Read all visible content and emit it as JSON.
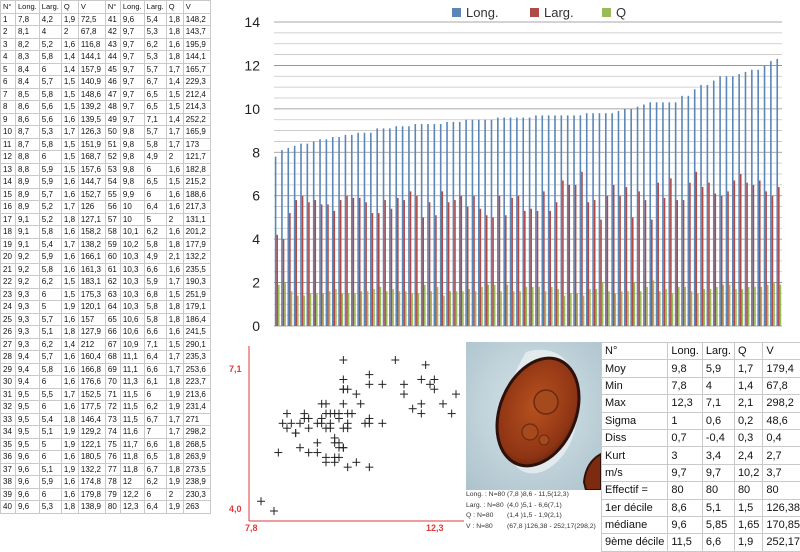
{
  "measurements": {
    "headers": [
      "N°",
      "Long.",
      "Larg.",
      "Q",
      "V"
    ],
    "rows": [
      [
        "1",
        "7,8",
        "4,2",
        "1,9",
        "72,5"
      ],
      [
        "2",
        "8,1",
        "4",
        "2",
        "67,8"
      ],
      [
        "3",
        "8,2",
        "5,2",
        "1,6",
        "116,8"
      ],
      [
        "4",
        "8,3",
        "5,8",
        "1,4",
        "144,1"
      ],
      [
        "5",
        "8,4",
        "6",
        "1,4",
        "157,9"
      ],
      [
        "6",
        "8,4",
        "5,7",
        "1,5",
        "140,9"
      ],
      [
        "7",
        "8,5",
        "5,8",
        "1,5",
        "148,6"
      ],
      [
        "8",
        "8,6",
        "5,6",
        "1,5",
        "139,2"
      ],
      [
        "9",
        "8,6",
        "5,6",
        "1,6",
        "139,5"
      ],
      [
        "10",
        "8,7",
        "5,3",
        "1,7",
        "126,3"
      ],
      [
        "11",
        "8,7",
        "5,8",
        "1,5",
        "151,9"
      ],
      [
        "12",
        "8,8",
        "6",
        "1,5",
        "168,7"
      ],
      [
        "13",
        "8,8",
        "5,9",
        "1,5",
        "157,6"
      ],
      [
        "14",
        "8,9",
        "5,9",
        "1,6",
        "144,7"
      ],
      [
        "15",
        "8,9",
        "5,7",
        "1,6",
        "152,7"
      ],
      [
        "16",
        "8,9",
        "5,2",
        "1,7",
        "126"
      ],
      [
        "17",
        "9,1",
        "5,2",
        "1,8",
        "127,1"
      ],
      [
        "18",
        "9,1",
        "5,8",
        "1,6",
        "158,2"
      ],
      [
        "19",
        "9,1",
        "5,4",
        "1,7",
        "138,2"
      ],
      [
        "20",
        "9,2",
        "5,9",
        "1,6",
        "166,1"
      ],
      [
        "21",
        "9,2",
        "5,8",
        "1,6",
        "161,3"
      ],
      [
        "22",
        "9,2",
        "6,2",
        "1,5",
        "183,1"
      ],
      [
        "23",
        "9,3",
        "6",
        "1,5",
        "175,3"
      ],
      [
        "24",
        "9,3",
        "5",
        "1,9",
        "120,1"
      ],
      [
        "25",
        "9,3",
        "5,7",
        "1,6",
        "157"
      ],
      [
        "26",
        "9,3",
        "5,1",
        "1,8",
        "127,9"
      ],
      [
        "27",
        "9,3",
        "6,2",
        "1,4",
        "212"
      ],
      [
        "28",
        "9,4",
        "5,7",
        "1,6",
        "160,4"
      ],
      [
        "29",
        "9,4",
        "5,8",
        "1,6",
        "166,8"
      ],
      [
        "30",
        "9,4",
        "6",
        "1,6",
        "176,6"
      ],
      [
        "31",
        "9,5",
        "5,5",
        "1,7",
        "152,5"
      ],
      [
        "32",
        "9,5",
        "6",
        "1,6",
        "177,5"
      ],
      [
        "33",
        "9,5",
        "5,4",
        "1,8",
        "146,4"
      ],
      [
        "34",
        "9,5",
        "5,1",
        "1,9",
        "129,2"
      ],
      [
        "35",
        "9,5",
        "5",
        "1,9",
        "122,1"
      ],
      [
        "36",
        "9,6",
        "6",
        "1,6",
        "180,5"
      ],
      [
        "37",
        "9,6",
        "5,1",
        "1,9",
        "132,2"
      ],
      [
        "38",
        "9,6",
        "5,9",
        "1,6",
        "174,8"
      ],
      [
        "39",
        "9,6",
        "6",
        "1,6",
        "179,8"
      ],
      [
        "40",
        "9,6",
        "5,3",
        "1,8",
        "138,9"
      ],
      [
        "41",
        "9,6",
        "5,4",
        "1,8",
        "148,2"
      ],
      [
        "42",
        "9,7",
        "5,3",
        "1,8",
        "143,7"
      ],
      [
        "43",
        "9,7",
        "6,2",
        "1,6",
        "195,9"
      ],
      [
        "44",
        "9,7",
        "5,3",
        "1,8",
        "144,1"
      ],
      [
        "45",
        "9,7",
        "5,7",
        "1,7",
        "165,7"
      ],
      [
        "46",
        "9,7",
        "6,7",
        "1,4",
        "229,3"
      ],
      [
        "47",
        "9,7",
        "6,5",
        "1,5",
        "212,4"
      ],
      [
        "48",
        "9,7",
        "6,5",
        "1,5",
        "214,3"
      ],
      [
        "49",
        "9,7",
        "7,1",
        "1,4",
        "252,2"
      ],
      [
        "50",
        "9,8",
        "5,7",
        "1,7",
        "165,9"
      ],
      [
        "51",
        "9,8",
        "5,8",
        "1,7",
        "173"
      ],
      [
        "52",
        "9,8",
        "4,9",
        "2",
        "121,7"
      ],
      [
        "53",
        "9,8",
        "6",
        "1,6",
        "182,8"
      ],
      [
        "54",
        "9,8",
        "6,5",
        "1,5",
        "215,2"
      ],
      [
        "55",
        "9,9",
        "6",
        "1,6",
        "188,6"
      ],
      [
        "56",
        "10",
        "6,4",
        "1,6",
        "217,3"
      ],
      [
        "57",
        "10",
        "5",
        "2",
        "131,1"
      ],
      [
        "58",
        "10,1",
        "6,2",
        "1,6",
        "201,2"
      ],
      [
        "59",
        "10,2",
        "5,8",
        "1,8",
        "177,9"
      ],
      [
        "60",
        "10,3",
        "4,9",
        "2,1",
        "132,2"
      ],
      [
        "61",
        "10,3",
        "6,6",
        "1,6",
        "235,5"
      ],
      [
        "62",
        "10,3",
        "5,9",
        "1,7",
        "190,3"
      ],
      [
        "63",
        "10,3",
        "6,8",
        "1,5",
        "251,9"
      ],
      [
        "64",
        "10,3",
        "5,8",
        "1,8",
        "179,1"
      ],
      [
        "65",
        "10,6",
        "5,8",
        "1,8",
        "186,4"
      ],
      [
        "66",
        "10,6",
        "6,6",
        "1,6",
        "241,5"
      ],
      [
        "67",
        "10,9",
        "7,1",
        "1,5",
        "290,1"
      ],
      [
        "68",
        "11,1",
        "6,4",
        "1,7",
        "235,3"
      ],
      [
        "69",
        "11,1",
        "6,6",
        "1,7",
        "253,6"
      ],
      [
        "70",
        "11,3",
        "6,1",
        "1,8",
        "223,7"
      ],
      [
        "71",
        "11,5",
        "6",
        "1,9",
        "213,6"
      ],
      [
        "72",
        "11,5",
        "6,2",
        "1,9",
        "231,4"
      ],
      [
        "73",
        "11,5",
        "6,7",
        "1,7",
        "271"
      ],
      [
        "74",
        "11,6",
        "7",
        "1,7",
        "298,2"
      ],
      [
        "75",
        "11,7",
        "6,6",
        "1,8",
        "268,5"
      ],
      [
        "76",
        "11,8",
        "6,5",
        "1,8",
        "263,9"
      ],
      [
        "77",
        "11,8",
        "6,7",
        "1,8",
        "273,5"
      ],
      [
        "78",
        "12",
        "6,2",
        "1,9",
        "238,9"
      ],
      [
        "79",
        "12,2",
        "6",
        "2",
        "230,3"
      ],
      [
        "80",
        "12,3",
        "6,4",
        "1,9",
        "263"
      ]
    ]
  },
  "chart_data": [
    {
      "type": "bar",
      "legend": [
        "Long.",
        "Larg.",
        "Q"
      ],
      "legend_position": "top-center",
      "grid": true,
      "ylim": [
        0,
        14
      ],
      "yticks": [
        "0",
        "2",
        "4",
        "6",
        "8",
        "10",
        "12",
        "14"
      ],
      "series": [
        {
          "name": "Long.",
          "color": "#5a86b8",
          "values": [
            7.8,
            8.1,
            8.2,
            8.3,
            8.4,
            8.4,
            8.5,
            8.6,
            8.6,
            8.7,
            8.7,
            8.8,
            8.8,
            8.9,
            8.9,
            8.9,
            9.1,
            9.1,
            9.1,
            9.2,
            9.2,
            9.2,
            9.3,
            9.3,
            9.3,
            9.3,
            9.3,
            9.4,
            9.4,
            9.4,
            9.5,
            9.5,
            9.5,
            9.5,
            9.5,
            9.6,
            9.6,
            9.6,
            9.6,
            9.6,
            9.6,
            9.7,
            9.7,
            9.7,
            9.7,
            9.7,
            9.7,
            9.7,
            9.7,
            9.8,
            9.8,
            9.8,
            9.8,
            9.8,
            9.9,
            10,
            10,
            10.1,
            10.2,
            10.3,
            10.3,
            10.3,
            10.3,
            10.3,
            10.6,
            10.6,
            10.9,
            11.1,
            11.1,
            11.3,
            11.5,
            11.5,
            11.5,
            11.6,
            11.7,
            11.8,
            11.8,
            12,
            12.2,
            12.3
          ]
        },
        {
          "name": "Larg.",
          "color": "#b04a47",
          "values": [
            4.2,
            4,
            5.2,
            5.8,
            6,
            5.7,
            5.8,
            5.6,
            5.6,
            5.3,
            5.8,
            6,
            5.9,
            5.9,
            5.7,
            5.2,
            5.2,
            5.8,
            5.4,
            5.9,
            5.8,
            6.2,
            6,
            5,
            5.7,
            5.1,
            6.2,
            5.7,
            5.8,
            6,
            5.5,
            6,
            5.4,
            5.1,
            5,
            6,
            5.1,
            5.9,
            6,
            5.3,
            5.4,
            5.3,
            6.2,
            5.3,
            5.7,
            6.7,
            6.5,
            6.5,
            7.1,
            5.7,
            5.8,
            4.9,
            6,
            6.5,
            6,
            6.4,
            5,
            6.2,
            5.8,
            4.9,
            6.6,
            5.9,
            6.8,
            5.8,
            5.8,
            6.6,
            7.1,
            6.4,
            6.6,
            6.1,
            6,
            6.2,
            6.7,
            7,
            6.6,
            6.5,
            6.7,
            6.2,
            6,
            6.4
          ]
        },
        {
          "name": "Q",
          "color": "#9bbb59",
          "values": [
            1.9,
            2,
            1.6,
            1.4,
            1.4,
            1.5,
            1.5,
            1.5,
            1.6,
            1.7,
            1.5,
            1.5,
            1.5,
            1.6,
            1.6,
            1.7,
            1.8,
            1.6,
            1.7,
            1.6,
            1.6,
            1.5,
            1.5,
            1.9,
            1.6,
            1.8,
            1.4,
            1.6,
            1.6,
            1.6,
            1.7,
            1.6,
            1.8,
            1.9,
            1.9,
            1.6,
            1.9,
            1.6,
            1.6,
            1.8,
            1.8,
            1.8,
            1.6,
            1.8,
            1.7,
            1.4,
            1.5,
            1.5,
            1.4,
            1.7,
            1.7,
            2,
            1.6,
            1.5,
            1.6,
            1.6,
            2,
            1.6,
            1.8,
            2.1,
            1.6,
            1.7,
            1.5,
            1.8,
            1.8,
            1.6,
            1.5,
            1.7,
            1.7,
            1.8,
            1.9,
            1.9,
            1.7,
            1.7,
            1.8,
            1.8,
            1.8,
            1.9,
            2,
            1.9
          ]
        }
      ]
    },
    {
      "type": "scatter",
      "x_tick_labels": [
        "7,8",
        "12,3"
      ],
      "y_tick_labels": [
        "4,0",
        "7,1"
      ],
      "xlim": [
        7.8,
        12.3
      ],
      "ylim": [
        4.0,
        7.1
      ],
      "marker": "+",
      "points": [
        [
          7.8,
          4.2
        ],
        [
          8.1,
          4
        ],
        [
          8.2,
          5.2
        ],
        [
          8.3,
          5.8
        ],
        [
          8.4,
          6
        ],
        [
          8.4,
          5.7
        ],
        [
          8.5,
          5.8
        ],
        [
          8.6,
          5.6
        ],
        [
          8.6,
          5.6
        ],
        [
          8.7,
          5.3
        ],
        [
          8.7,
          5.8
        ],
        [
          8.8,
          6
        ],
        [
          8.8,
          5.9
        ],
        [
          8.9,
          5.9
        ],
        [
          8.9,
          5.7
        ],
        [
          8.9,
          5.2
        ],
        [
          9.1,
          5.2
        ],
        [
          9.1,
          5.8
        ],
        [
          9.1,
          5.4
        ],
        [
          9.2,
          5.9
        ],
        [
          9.2,
          5.8
        ],
        [
          9.2,
          6.2
        ],
        [
          9.3,
          6
        ],
        [
          9.3,
          5
        ],
        [
          9.3,
          5.7
        ],
        [
          9.3,
          5.1
        ],
        [
          9.3,
          6.2
        ],
        [
          9.4,
          5.7
        ],
        [
          9.4,
          5.8
        ],
        [
          9.4,
          6
        ],
        [
          9.5,
          5.5
        ],
        [
          9.5,
          6
        ],
        [
          9.5,
          5.4
        ],
        [
          9.5,
          5.1
        ],
        [
          9.5,
          5
        ],
        [
          9.6,
          6
        ],
        [
          9.6,
          5.1
        ],
        [
          9.6,
          5.9
        ],
        [
          9.6,
          6
        ],
        [
          9.6,
          5.3
        ],
        [
          9.6,
          5.4
        ],
        [
          9.7,
          5.3
        ],
        [
          9.7,
          6.2
        ],
        [
          9.7,
          5.3
        ],
        [
          9.7,
          5.7
        ],
        [
          9.7,
          6.7
        ],
        [
          9.7,
          6.5
        ],
        [
          9.7,
          6.5
        ],
        [
          9.7,
          7.1
        ],
        [
          9.8,
          5.7
        ],
        [
          9.8,
          5.8
        ],
        [
          9.8,
          4.9
        ],
        [
          9.8,
          6
        ],
        [
          9.8,
          6.5
        ],
        [
          9.9,
          6
        ],
        [
          10,
          6.4
        ],
        [
          10,
          5
        ],
        [
          10.1,
          6.2
        ],
        [
          10.2,
          5.8
        ],
        [
          10.3,
          4.9
        ],
        [
          10.3,
          6.6
        ],
        [
          10.3,
          5.9
        ],
        [
          10.3,
          6.8
        ],
        [
          10.3,
          5.8
        ],
        [
          10.6,
          5.8
        ],
        [
          10.6,
          6.6
        ],
        [
          10.9,
          7.1
        ],
        [
          11.1,
          6.4
        ],
        [
          11.1,
          6.6
        ],
        [
          11.3,
          6.1
        ],
        [
          11.5,
          6
        ],
        [
          11.5,
          6.2
        ],
        [
          11.5,
          6.7
        ],
        [
          11.6,
          7
        ],
        [
          11.7,
          6.6
        ],
        [
          11.8,
          6.5
        ],
        [
          11.8,
          6.7
        ],
        [
          12,
          6.2
        ],
        [
          12.2,
          6
        ],
        [
          12.3,
          6.4
        ]
      ]
    }
  ],
  "stats": {
    "headers": [
      "N°",
      "Long.",
      "Larg.",
      "Q",
      "V"
    ],
    "rows": [
      [
        "Moy",
        "9,8",
        "5,9",
        "1,7",
        "179,4"
      ],
      [
        "Min",
        "7,8",
        "4",
        "1,4",
        "67,8"
      ],
      [
        "Max",
        "12,3",
        "7,1",
        "2,1",
        "298,2"
      ],
      [
        "Sigma",
        "1",
        "0,6",
        "0,2",
        "48,6"
      ],
      [
        "Diss",
        "0,7",
        "-0,4",
        "0,3",
        "0,4"
      ],
      [
        "Kurt",
        "3",
        "3,4",
        "2,4",
        "2,7"
      ],
      [
        "m/s",
        "9,7",
        "9,7",
        "10,2",
        "3,7"
      ],
      [
        "Effectif =",
        "80",
        "80",
        "80",
        "80"
      ],
      [
        "1er décile",
        "8,6",
        "5,1",
        "1,5",
        "126,38"
      ],
      [
        "médiane",
        "9,6",
        "5,85",
        "1,65",
        "170,85"
      ],
      [
        "9ème décile",
        "11,5",
        "6,6",
        "1,9",
        "252,17"
      ]
    ]
  },
  "ranges": [
    {
      "label": "Long. : N=80",
      "value": "(7,8 )8,6 - 11,5(12,3)"
    },
    {
      "label": "Larg. : N=80",
      "value": "(4,0 )5,1 - 6,6(7,1)"
    },
    {
      "label": "Q : N=80",
      "value": "(1,4 )1,5 - 1,9(2,1)"
    },
    {
      "label": "V : N=80",
      "value": "(67,8 )126,38 - 252,17(298,2)"
    }
  ],
  "colors": {
    "long": "#5a86b8",
    "larg": "#b04a47",
    "q": "#9bbb59",
    "axis_red": "#e03a3a",
    "grid": "#a0a0a0",
    "photo_bg": "#c5d6dc",
    "spore": "#9b3e1a"
  },
  "icons": {
    "photo": "spore-micrograph"
  }
}
